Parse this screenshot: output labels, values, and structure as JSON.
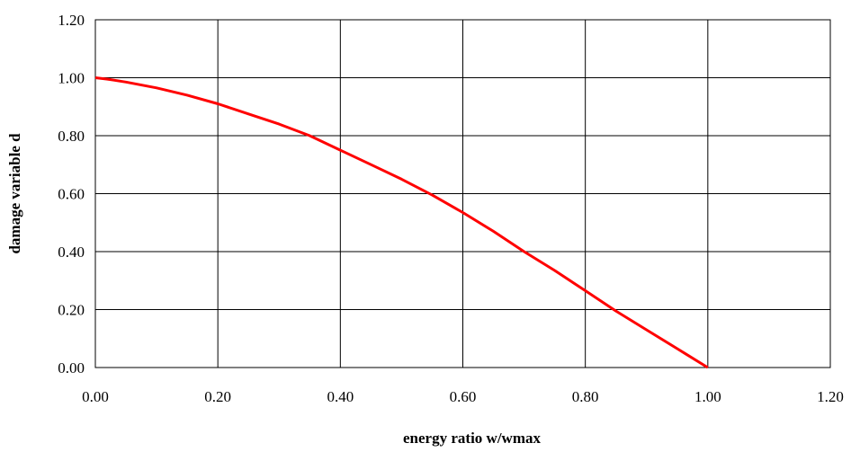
{
  "chart_data": {
    "type": "line",
    "title": "",
    "xlabel": "energy ratio w/wmax",
    "ylabel": "damage variable d",
    "xlim": [
      0,
      1.2
    ],
    "ylim": [
      0,
      1.2
    ],
    "xticks": [
      "0.00",
      "0.20",
      "0.40",
      "0.60",
      "0.80",
      "1.00",
      "1.20"
    ],
    "yticks": [
      "0.00",
      "0.20",
      "0.40",
      "0.60",
      "0.80",
      "1.00",
      "1.20"
    ],
    "grid": true,
    "legend": "none",
    "series": [
      {
        "color": "#ff0000",
        "x": [
          0.0,
          0.02,
          0.05,
          0.1,
          0.15,
          0.2,
          0.25,
          0.3,
          0.35,
          0.4,
          0.45,
          0.5,
          0.55,
          0.6,
          0.65,
          0.7,
          0.75,
          0.8,
          0.85,
          0.9,
          0.95,
          1.0
        ],
        "y": [
          1.0,
          0.995,
          0.985,
          0.965,
          0.94,
          0.91,
          0.875,
          0.84,
          0.8,
          0.75,
          0.7,
          0.65,
          0.595,
          0.535,
          0.47,
          0.4,
          0.335,
          0.265,
          0.195,
          0.13,
          0.065,
          0.0
        ]
      }
    ]
  }
}
